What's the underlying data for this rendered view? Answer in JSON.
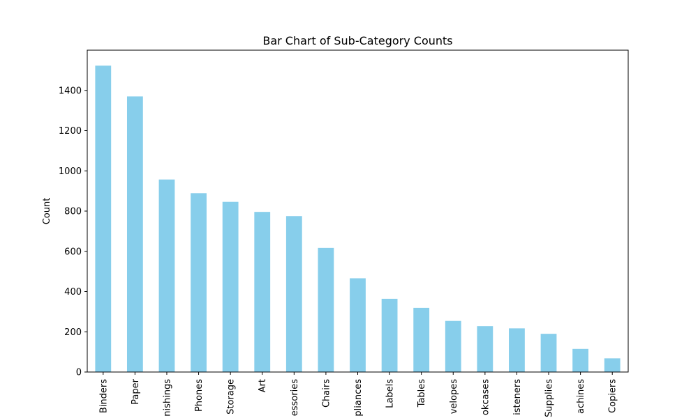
{
  "chart_data": {
    "type": "bar",
    "title": "Bar Chart of Sub-Category Counts",
    "xlabel": "",
    "ylabel": "Count",
    "categories": [
      "Binders",
      "Paper",
      "Furnishings",
      "Phones",
      "Storage",
      "Art",
      "Accessories",
      "Chairs",
      "Appliances",
      "Labels",
      "Tables",
      "Envelopes",
      "Bookcases",
      "Fasteners",
      "Supplies",
      "Machines",
      "Copiers"
    ],
    "tick_labels": [
      "Binders",
      "Paper",
      "nishings",
      "Phones",
      "Storage",
      "Art",
      "essories",
      "Chairs",
      "pliances",
      "Labels",
      "Tables",
      "velopes",
      "okcases",
      "isteners",
      "Supplies",
      "achines",
      "Copiers"
    ],
    "values": [
      1523,
      1370,
      957,
      889,
      846,
      796,
      775,
      617,
      466,
      364,
      319,
      254,
      228,
      217,
      190,
      115,
      68
    ],
    "ylim": [
      0,
      1600
    ],
    "yticks": [
      0,
      200,
      400,
      600,
      800,
      1000,
      1200,
      1400
    ],
    "grid": false,
    "colors": {
      "bar": "#87CEEB",
      "axis": "#000000"
    }
  }
}
